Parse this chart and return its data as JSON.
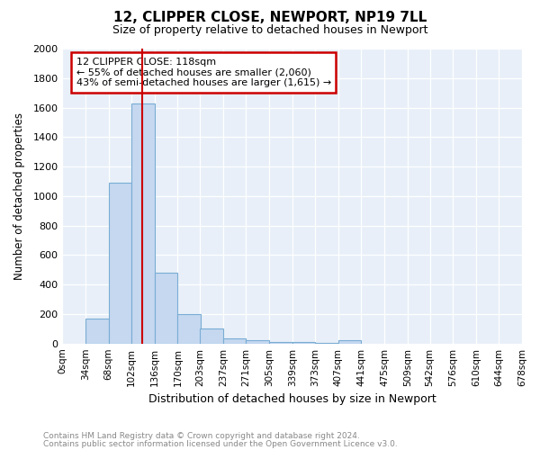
{
  "title": "12, CLIPPER CLOSE, NEWPORT, NP19 7LL",
  "subtitle": "Size of property relative to detached houses in Newport",
  "xlabel": "Distribution of detached houses by size in Newport",
  "ylabel": "Number of detached properties",
  "annotation_line1": "12 CLIPPER CLOSE: 118sqm",
  "annotation_line2": "← 55% of detached houses are smaller (2,060)",
  "annotation_line3": "43% of semi-detached houses are larger (1,615) →",
  "footnote1": "Contains HM Land Registry data © Crown copyright and database right 2024.",
  "footnote2": "Contains public sector information licensed under the Open Government Licence v3.0.",
  "bin_edges": [
    0,
    34,
    68,
    102,
    136,
    170,
    203,
    237,
    271,
    305,
    339,
    373,
    407,
    441,
    475,
    509,
    542,
    576,
    610,
    644,
    678
  ],
  "bin_labels": [
    "0sqm",
    "34sqm",
    "68sqm",
    "102sqm",
    "136sqm",
    "170sqm",
    "203sqm",
    "237sqm",
    "271sqm",
    "305sqm",
    "339sqm",
    "373sqm",
    "407sqm",
    "441sqm",
    "475sqm",
    "509sqm",
    "542sqm",
    "576sqm",
    "610sqm",
    "644sqm",
    "678sqm"
  ],
  "bar_heights": [
    0,
    170,
    1090,
    1630,
    480,
    200,
    100,
    35,
    20,
    10,
    8,
    5,
    20,
    0,
    0,
    0,
    0,
    0,
    0,
    0
  ],
  "bar_color": "#c5d8f0",
  "bar_edge_color": "#7aadd4",
  "vline_color": "#cc0000",
  "vline_x": 118,
  "ylim": [
    0,
    2000
  ],
  "yticks": [
    0,
    200,
    400,
    600,
    800,
    1000,
    1200,
    1400,
    1600,
    1800,
    2000
  ],
  "annotation_box_edge_color": "#cc0000",
  "fig_bg_color": "#ffffff",
  "axes_bg_color": "#e8eff8",
  "grid_color": "#ffffff",
  "title_fontsize": 11,
  "subtitle_fontsize": 9
}
